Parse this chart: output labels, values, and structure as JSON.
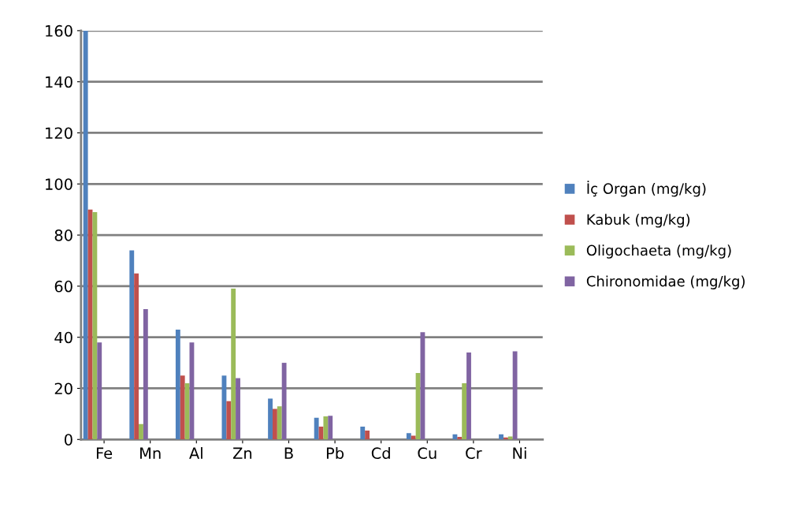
{
  "chart_data": {
    "type": "bar",
    "categories": [
      "Fe",
      "Mn",
      "Al",
      "Zn",
      "B",
      "Pb",
      "Cd",
      "Cu",
      "Cr",
      "Ni"
    ],
    "series": [
      {
        "name": "İç Organ (mg/kg)",
        "color": "#4f81bd",
        "values": [
          160,
          74,
          43,
          25,
          16,
          8.5,
          5,
          2.5,
          2,
          2
        ]
      },
      {
        "name": "Kabuk (mg/kg)",
        "color": "#c0504d",
        "values": [
          90,
          65,
          25,
          15,
          12,
          5,
          3.5,
          1.5,
          1,
          0.8
        ]
      },
      {
        "name": "Oligochaeta (mg/kg)",
        "color": "#9bbb59",
        "values": [
          89,
          6,
          22,
          59,
          13,
          9,
          null,
          26,
          22,
          1.2
        ]
      },
      {
        "name": "Chironomidae (mg/kg)",
        "color": "#8064a2",
        "values": [
          38,
          51,
          38,
          24,
          30,
          9.3,
          null,
          42,
          34,
          34.5
        ]
      }
    ],
    "ylim": [
      0,
      160
    ],
    "yticks": [
      0,
      20,
      40,
      60,
      80,
      100,
      120,
      140,
      160
    ],
    "grid": "y",
    "legend": "right"
  }
}
